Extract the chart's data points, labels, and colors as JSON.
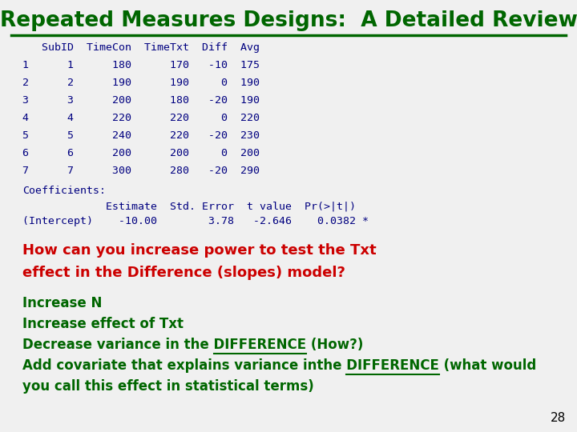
{
  "title": "Repeated Measures Designs:  A Detailed Review",
  "title_color": "#006600",
  "title_fontsize": 19,
  "bg_color": "#f0f0f0",
  "line_color": "#006600",
  "table_header": "   SubID  TimeCon  TimeTxt  Diff  Avg",
  "table_rows": [
    "1      1      180      170   -10  175",
    "2      2      190      190     0  190",
    "3      3      200      180   -20  190",
    "4      4      220      220     0  220",
    "5      5      240      220   -20  230",
    "6      6      200      200     0  200",
    "7      7      300      280   -20  290"
  ],
  "coeff_label": "Coefficients:",
  "coeff_header": "             Estimate  Std. Error  t value  Pr(>|t|)",
  "coeff_row": "(Intercept)    -10.00        3.78   -2.646    0.0382 *",
  "question_lines": [
    "How can you increase power to test the Txt",
    "effect in the Difference (slopes) model?"
  ],
  "question_color": "#cc0000",
  "answer_lines_plain": [
    "Increase N",
    "Increase effect of Txt"
  ],
  "answer_line3_pre": "Decrease variance in the ",
  "answer_line3_ul": "DIFFERENCE",
  "answer_line3_post": " (How?)",
  "answer_line4_pre": "Add covariate that explains variance inthe ",
  "answer_line4_ul": "DIFFERENCE",
  "answer_line4_post": " (what would",
  "answer_line5": "you call this effect in statistical terms)",
  "answer_color": "#006600",
  "mono_color": "#000080",
  "page_number": "28"
}
